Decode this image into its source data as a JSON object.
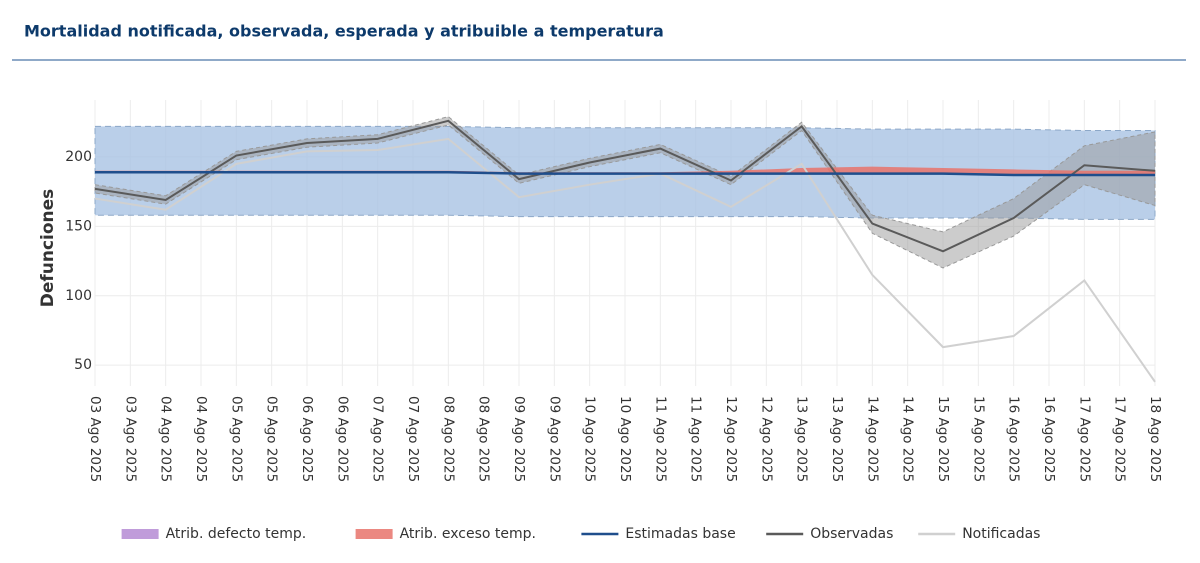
{
  "chart_data": {
    "type": "line",
    "title": "Mortalidad notificada, observada, esperada y atribuible a temperatura",
    "ylabel": "Defunciones",
    "x": [
      3,
      4,
      5,
      6,
      7,
      8,
      9,
      10,
      11,
      12,
      13,
      14,
      15,
      16,
      17,
      18
    ],
    "xlim": [
      3,
      18
    ],
    "xticks": [
      {
        "value": 3,
        "label": "03 Ago 2025"
      },
      {
        "value": 3.5,
        "label": "03 Ago 2025"
      },
      {
        "value": 4,
        "label": "04 Ago 2025"
      },
      {
        "value": 4.5,
        "label": "04 Ago 2025"
      },
      {
        "value": 5,
        "label": "05 Ago 2025"
      },
      {
        "value": 5.5,
        "label": "05 Ago 2025"
      },
      {
        "value": 6,
        "label": "06 Ago 2025"
      },
      {
        "value": 6.5,
        "label": "06 Ago 2025"
      },
      {
        "value": 7,
        "label": "07 Ago 2025"
      },
      {
        "value": 7.5,
        "label": "07 Ago 2025"
      },
      {
        "value": 8,
        "label": "08 Ago 2025"
      },
      {
        "value": 8.5,
        "label": "08 Ago 2025"
      },
      {
        "value": 9,
        "label": "09 Ago 2025"
      },
      {
        "value": 9.5,
        "label": "09 Ago 2025"
      },
      {
        "value": 10,
        "label": "10 Ago 2025"
      },
      {
        "value": 10.5,
        "label": "10 Ago 2025"
      },
      {
        "value": 11,
        "label": "11 Ago 2025"
      },
      {
        "value": 11.5,
        "label": "11 Ago 2025"
      },
      {
        "value": 12,
        "label": "12 Ago 2025"
      },
      {
        "value": 12.5,
        "label": "12 Ago 2025"
      },
      {
        "value": 13,
        "label": "13 Ago 2025"
      },
      {
        "value": 13.5,
        "label": "13 Ago 2025"
      },
      {
        "value": 14,
        "label": "14 Ago 2025"
      },
      {
        "value": 14.5,
        "label": "14 Ago 2025"
      },
      {
        "value": 15,
        "label": "15 Ago 2025"
      },
      {
        "value": 15.5,
        "label": "15 Ago 2025"
      },
      {
        "value": 16,
        "label": "16 Ago 2025"
      },
      {
        "value": 16.5,
        "label": "16 Ago 2025"
      },
      {
        "value": 17,
        "label": "17 Ago 2025"
      },
      {
        "value": 17.5,
        "label": "17 Ago 2025"
      },
      {
        "value": 18,
        "label": "18 Ago 2025"
      }
    ],
    "ylim": [
      35,
      241
    ],
    "yticks": [
      50,
      100,
      150,
      200
    ],
    "grid": true,
    "legend": "bottom",
    "series": [
      {
        "name": "Atrib. defecto temp.",
        "color": "#b58bd3",
        "style": "below-base",
        "values": [
          0,
          0,
          0,
          0,
          0,
          0,
          0,
          0,
          0,
          0,
          0,
          0,
          0,
          0,
          0,
          0
        ]
      },
      {
        "name": "Atrib. exceso temp.",
        "color": "#e8736b",
        "style": "above-base",
        "values": [
          1,
          1,
          1,
          1,
          1,
          1,
          1,
          1,
          1,
          2,
          4,
          5,
          4,
          4,
          3,
          3
        ]
      },
      {
        "name": "Estimadas base",
        "color": "#1f4e8c",
        "style": "base",
        "band_color": "#a9c3e3",
        "values": [
          189,
          189,
          189,
          189,
          189,
          189,
          188,
          188,
          188,
          188,
          188,
          188,
          188,
          187,
          187,
          187
        ],
        "lower": [
          158,
          158,
          158,
          158,
          158,
          158,
          157,
          157,
          157,
          157,
          157,
          156,
          156,
          156,
          155,
          155
        ],
        "upper": [
          222,
          222,
          222,
          222,
          222,
          222,
          221,
          221,
          221,
          221,
          221,
          220,
          220,
          220,
          219,
          219
        ]
      },
      {
        "name": "Observadas",
        "color": "#5a5a5a",
        "style": "line",
        "band_color": "#9a9a9a",
        "values": [
          177,
          169,
          201,
          210,
          213,
          226,
          184,
          196,
          206,
          183,
          222,
          152,
          132,
          156,
          194,
          190
        ],
        "lower": [
          174,
          166,
          198,
          207,
          210,
          223,
          181,
          193,
          203,
          180,
          219,
          145,
          120,
          143,
          180,
          165
        ],
        "upper": [
          180,
          172,
          204,
          213,
          216,
          229,
          187,
          199,
          209,
          186,
          225,
          158,
          146,
          170,
          208,
          218
        ]
      },
      {
        "name": "Notificadas",
        "color": "#d0d0d0",
        "style": "line",
        "values": [
          170,
          162,
          195,
          204,
          205,
          213,
          171,
          180,
          188,
          164,
          195,
          115,
          63,
          71,
          111,
          38
        ]
      }
    ]
  }
}
